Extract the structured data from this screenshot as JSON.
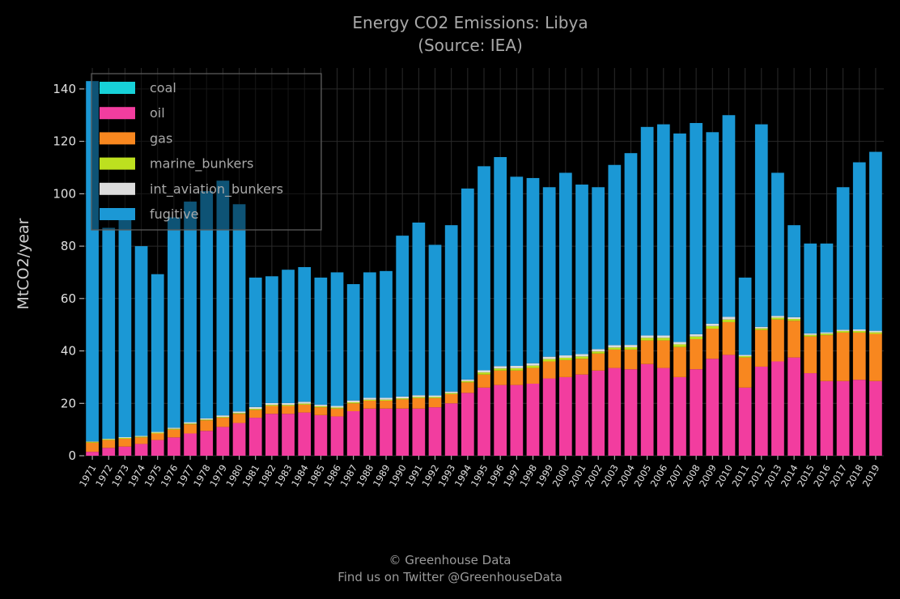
{
  "chart_data": {
    "type": "bar",
    "stacked": true,
    "title": "Energy CO2 Emissions: Libya",
    "subtitle": "(Source: IEA)",
    "ylabel": "MtCO2/year",
    "xlabel": "",
    "ylim": [
      0,
      148
    ],
    "yticks": [
      0,
      20,
      40,
      60,
      80,
      100,
      120,
      140
    ],
    "grid": true,
    "legend_position": "top-left",
    "categories": [
      "1971",
      "1972",
      "1973",
      "1974",
      "1975",
      "1976",
      "1977",
      "1978",
      "1979",
      "1980",
      "1981",
      "1982",
      "1983",
      "1984",
      "1985",
      "1986",
      "1987",
      "1988",
      "1989",
      "1990",
      "1991",
      "1992",
      "1993",
      "1994",
      "1995",
      "1996",
      "1997",
      "1998",
      "1999",
      "2000",
      "2001",
      "2002",
      "2003",
      "2004",
      "2005",
      "2006",
      "2007",
      "2008",
      "2009",
      "2010",
      "2011",
      "2012",
      "2013",
      "2014",
      "2015",
      "2016",
      "2017",
      "2018",
      "2019"
    ],
    "series": [
      {
        "name": "coal",
        "color": "#17d1d8",
        "values": [
          0,
          0,
          0,
          0,
          0,
          0,
          0,
          0,
          0,
          0,
          0,
          0,
          0,
          0,
          0,
          0,
          0,
          0,
          0,
          0,
          0,
          0,
          0,
          0,
          0,
          0,
          0,
          0,
          0,
          0,
          0,
          0,
          0,
          0,
          0,
          0,
          0,
          0,
          0,
          0,
          0,
          0,
          0,
          0,
          0,
          0,
          0,
          0,
          0
        ]
      },
      {
        "name": "oil",
        "color": "#f23d9f",
        "values": [
          1.5,
          3,
          3.5,
          4.5,
          6,
          7,
          8.5,
          9.5,
          11,
          12.5,
          14.5,
          16,
          16,
          16.5,
          15.5,
          15,
          17,
          18,
          18,
          18,
          18,
          18.5,
          20,
          24,
          26,
          27,
          27,
          27.5,
          29.5,
          30,
          31,
          32.5,
          33.5,
          33,
          35,
          33.5,
          30,
          33,
          37,
          38.5,
          26,
          34,
          36,
          37.5,
          31.5,
          28.5,
          28.5,
          29,
          28.5
        ]
      },
      {
        "name": "gas",
        "color": "#f8871f",
        "values": [
          3.5,
          3,
          3,
          2.5,
          2.5,
          3,
          3.5,
          4,
          3.5,
          3.5,
          3,
          3,
          3,
          3,
          3,
          3,
          3,
          3,
          3,
          3.5,
          4,
          3.5,
          3.5,
          4,
          5,
          5.5,
          5.5,
          6,
          6.5,
          6.5,
          6,
          6.5,
          7,
          7.5,
          9,
          10.5,
          11.5,
          11.5,
          11.5,
          12.5,
          11.5,
          14,
          16,
          14,
          14,
          17.5,
          18.5,
          18,
          18
        ]
      },
      {
        "name": "marine_bunkers",
        "color": "#bde01f",
        "values": [
          0.3,
          0.3,
          0.3,
          0.3,
          0.3,
          0.3,
          0.3,
          0.3,
          0.3,
          0.3,
          0.4,
          0.4,
          0.4,
          0.4,
          0.4,
          0.4,
          0.4,
          0.4,
          0.4,
          0.4,
          0.4,
          0.4,
          0.4,
          0.5,
          0.8,
          0.8,
          0.9,
          0.9,
          0.9,
          0.9,
          0.9,
          0.8,
          0.8,
          0.9,
          1,
          1,
          1,
          1,
          1,
          1,
          0.5,
          0.6,
          0.7,
          0.7,
          0.6,
          0.6,
          0.6,
          0.6,
          0.6
        ]
      },
      {
        "name": "int_aviation_bunkers",
        "color": "#dcdcdc",
        "values": [
          0.2,
          0.2,
          0.3,
          0.3,
          0.3,
          0.4,
          0.5,
          0.5,
          0.6,
          0.6,
          0.7,
          0.7,
          0.7,
          0.7,
          0.6,
          0.6,
          0.7,
          0.7,
          0.7,
          0.7,
          0.7,
          0.6,
          0.6,
          0.6,
          0.8,
          0.9,
          0.9,
          0.9,
          0.9,
          0.9,
          0.9,
          0.9,
          0.9,
          0.9,
          0.9,
          0.9,
          0.9,
          0.9,
          0.9,
          1,
          0.5,
          0.6,
          0.7,
          0.7,
          0.6,
          0.5,
          0.5,
          0.6,
          0.6
        ]
      },
      {
        "name": "fugitive",
        "color": "#1b98d5",
        "values": [
          137.5,
          80.5,
          82.9,
          72.4,
          60.2,
          80.3,
          84.2,
          86.7,
          89.6,
          79.1,
          49.4,
          48.4,
          50.9,
          51.4,
          48.5,
          51,
          44.4,
          47.9,
          48.4,
          61.4,
          65.9,
          57.5,
          63.5,
          72.9,
          77.9,
          79.8,
          72.2,
          70.7,
          64.7,
          69.7,
          64.7,
          61.8,
          68.8,
          73.2,
          79.6,
          80.6,
          79.6,
          80.6,
          73.1,
          77,
          29.5,
          77.3,
          54.6,
          35.1,
          34.3,
          33.9,
          54.4,
          63.8,
          68.3
        ]
      }
    ]
  },
  "footer": {
    "line1": "© Greenhouse Data",
    "line2": "Find us on Twitter @GreenhouseData"
  }
}
